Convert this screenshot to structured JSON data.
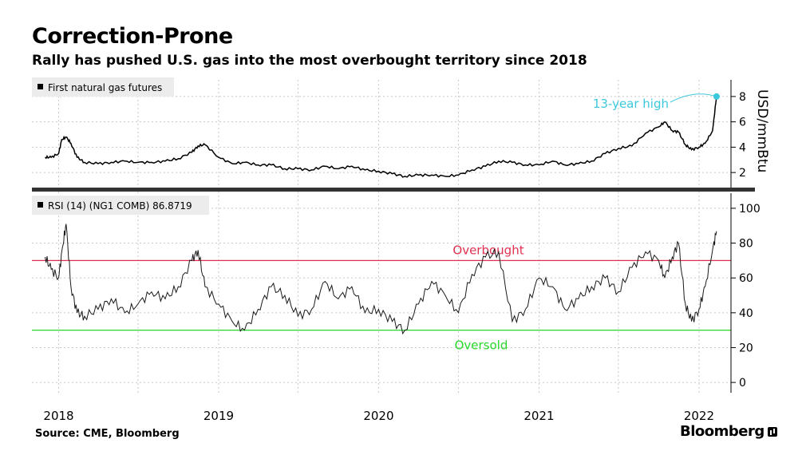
{
  "header": {
    "title": "Correction-Prone",
    "subtitle": "Rally has pushed U.S. gas into the most overbought territory since 2018"
  },
  "footer": {
    "source": "Source: CME, Bloomberg",
    "brand": "Bloomberg"
  },
  "colors": {
    "price_line": "#000000",
    "rsi_line": "#1a1a1a",
    "overbought": "#e0304f",
    "oversold": "#28d828",
    "annotation": "#3cc8dc",
    "grid": "#c8c8c8",
    "legend_bg": "#ececec"
  },
  "chart_data": [
    {
      "type": "line",
      "legend": "First natural gas futures",
      "ylabel": "USD/mmBtu",
      "ylim": [
        1,
        9
      ],
      "yticks": [
        2,
        4,
        6,
        8
      ],
      "annotation": {
        "text": "13-year high",
        "x": "2022-02-10",
        "y": 8.0
      },
      "series": [
        {
          "name": "First natural gas futures",
          "x": [
            "2017-12-01",
            "2017-12-15",
            "2018-01-01",
            "2018-01-08",
            "2018-01-18",
            "2018-01-29",
            "2018-02-12",
            "2018-03-01",
            "2018-04-01",
            "2018-05-01",
            "2018-06-01",
            "2018-07-01",
            "2018-08-01",
            "2018-09-01",
            "2018-10-01",
            "2018-11-01",
            "2018-11-15",
            "2018-12-01",
            "2019-01-01",
            "2019-02-01",
            "2019-03-01",
            "2019-04-01",
            "2019-05-01",
            "2019-06-01",
            "2019-07-01",
            "2019-08-01",
            "2019-09-01",
            "2019-10-01",
            "2019-11-01",
            "2019-12-01",
            "2020-01-01",
            "2020-02-01",
            "2020-03-01",
            "2020-04-01",
            "2020-05-01",
            "2020-06-01",
            "2020-07-01",
            "2020-08-01",
            "2020-09-01",
            "2020-10-01",
            "2020-11-01",
            "2020-12-01",
            "2021-01-01",
            "2021-02-01",
            "2021-03-01",
            "2021-04-01",
            "2021-05-01",
            "2021-06-01",
            "2021-07-01",
            "2021-08-01",
            "2021-09-01",
            "2021-10-01",
            "2021-10-15",
            "2021-11-01",
            "2021-11-15",
            "2021-12-01",
            "2021-12-15",
            "2022-01-01",
            "2022-01-15",
            "2022-02-01",
            "2022-02-10"
          ],
          "values": [
            3.2,
            3.2,
            3.5,
            4.6,
            4.8,
            4.3,
            3.2,
            2.8,
            2.7,
            2.8,
            2.9,
            2.8,
            2.8,
            2.9,
            3.1,
            3.6,
            4.1,
            4.2,
            3.2,
            2.7,
            2.8,
            2.6,
            2.6,
            2.3,
            2.3,
            2.2,
            2.5,
            2.3,
            2.5,
            2.2,
            2.1,
            1.9,
            1.7,
            1.8,
            1.8,
            1.7,
            1.8,
            2.2,
            2.5,
            2.9,
            2.8,
            2.6,
            2.6,
            2.9,
            2.6,
            2.7,
            2.9,
            3.5,
            3.9,
            4.1,
            5.1,
            5.6,
            6.0,
            5.3,
            5.2,
            4.2,
            3.8,
            4.0,
            4.3,
            5.3,
            8.0
          ]
        }
      ]
    },
    {
      "type": "line",
      "legend": "RSI (14) (NG1 COMB) 86.8719",
      "ylim": [
        -5,
        105
      ],
      "yticks": [
        0,
        20,
        40,
        60,
        80,
        100
      ],
      "reference_lines": [
        {
          "label": "Overbought",
          "value": 70
        },
        {
          "label": "Oversold",
          "value": 30
        }
      ],
      "series": [
        {
          "name": "RSI (14) (NG1 COMB)",
          "x": [
            "2017-12-01",
            "2017-12-15",
            "2018-01-01",
            "2018-01-10",
            "2018-01-18",
            "2018-01-29",
            "2018-02-12",
            "2018-03-01",
            "2018-04-01",
            "2018-05-01",
            "2018-06-01",
            "2018-07-01",
            "2018-08-01",
            "2018-09-01",
            "2018-10-01",
            "2018-11-01",
            "2018-11-15",
            "2018-12-01",
            "2019-01-01",
            "2019-02-01",
            "2019-03-01",
            "2019-04-01",
            "2019-05-01",
            "2019-06-01",
            "2019-07-01",
            "2019-08-01",
            "2019-09-01",
            "2019-10-01",
            "2019-11-01",
            "2019-12-01",
            "2020-01-01",
            "2020-02-01",
            "2020-03-01",
            "2020-04-01",
            "2020-05-01",
            "2020-06-01",
            "2020-07-01",
            "2020-08-01",
            "2020-09-01",
            "2020-10-01",
            "2020-11-01",
            "2020-12-01",
            "2021-01-01",
            "2021-02-01",
            "2021-03-01",
            "2021-04-01",
            "2021-05-01",
            "2021-06-01",
            "2021-07-01",
            "2021-08-01",
            "2021-09-01",
            "2021-10-01",
            "2021-10-15",
            "2021-11-01",
            "2021-11-15",
            "2021-12-01",
            "2021-12-15",
            "2022-01-01",
            "2022-01-15",
            "2022-02-01",
            "2022-02-10"
          ],
          "values": [
            72,
            65,
            60,
            78,
            91,
            55,
            40,
            38,
            42,
            48,
            40,
            45,
            52,
            48,
            55,
            70,
            76,
            55,
            45,
            35,
            30,
            42,
            55,
            50,
            38,
            42,
            58,
            48,
            55,
            40,
            42,
            35,
            30,
            45,
            58,
            50,
            40,
            62,
            72,
            75,
            35,
            42,
            60,
            55,
            42,
            48,
            55,
            60,
            52,
            66,
            75,
            70,
            60,
            72,
            80,
            45,
            35,
            42,
            55,
            76,
            86.87
          ]
        }
      ]
    }
  ],
  "x_axis": {
    "ticks": [
      "2018",
      "2019",
      "2020",
      "2021",
      "2022"
    ]
  }
}
